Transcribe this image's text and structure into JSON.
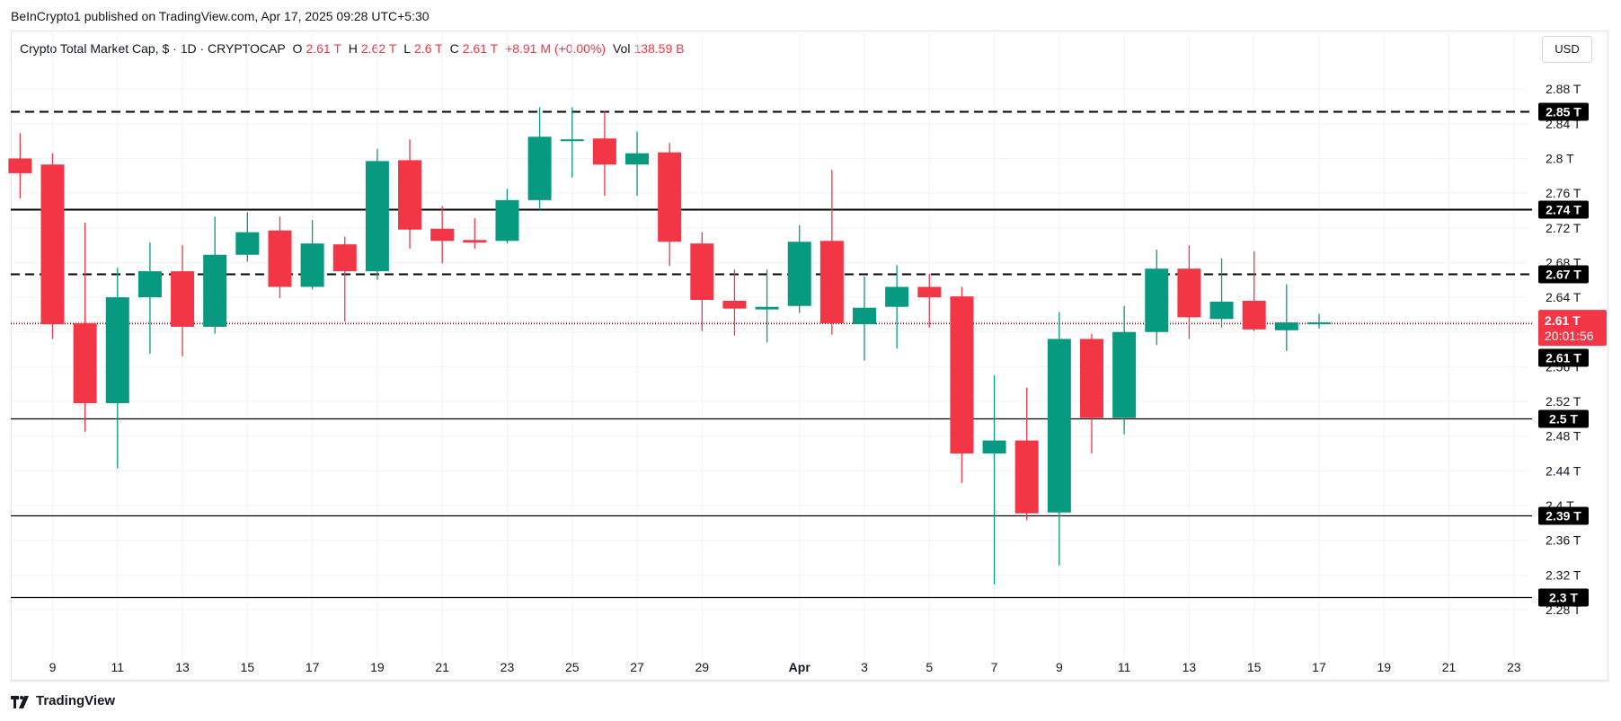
{
  "published": "BeInCrypto1 published on TradingView.com, Apr 17, 2025 09:28 UTC+5:30",
  "legend": {
    "symbol": "Crypto Total Market Cap, $ · 1D · CRYPTOCAP",
    "o_label": "O",
    "o_value": "2.61 T",
    "h_label": "H",
    "h_value": "2.62 T",
    "l_label": "L",
    "l_value": "2.6 T",
    "c_label": "C",
    "c_value": "2.61 T",
    "change": "+8.91 M (+0.00%)",
    "vol_label": "Vol",
    "vol_value": "138.59 B"
  },
  "currency_button": "USD",
  "footer_brand": "TradingView",
  "colors": {
    "up": "#089981",
    "down": "#f23645",
    "grid": "#f0f3fa",
    "text": "#131722",
    "level": "#000000"
  },
  "chart_data": {
    "type": "candlestick",
    "title": "Crypto Total Market Cap, $ · 1D · CRYPTOCAP",
    "xlabel": "",
    "ylabel": "",
    "ylim": [
      2.265,
      2.905
    ],
    "y_ticks": [
      "2.88 T",
      "2.84 T",
      "2.8 T",
      "2.76 T",
      "2.72 T",
      "2.68 T",
      "2.64 T",
      "2.6 T",
      "2.56 T",
      "2.52 T",
      "2.48 T",
      "2.44 T",
      "2.4 T",
      "2.36 T",
      "2.32 T",
      "2.28 T"
    ],
    "y_tick_values": [
      2.88,
      2.84,
      2.8,
      2.76,
      2.72,
      2.68,
      2.64,
      2.6,
      2.56,
      2.52,
      2.48,
      2.44,
      2.4,
      2.36,
      2.32,
      2.28
    ],
    "x_ticks": [
      {
        "label": "9",
        "d": 9
      },
      {
        "label": "11",
        "d": 11
      },
      {
        "label": "13",
        "d": 13
      },
      {
        "label": "15",
        "d": 15
      },
      {
        "label": "17",
        "d": 17
      },
      {
        "label": "19",
        "d": 19
      },
      {
        "label": "21",
        "d": 21
      },
      {
        "label": "23",
        "d": 23
      },
      {
        "label": "25",
        "d": 25
      },
      {
        "label": "27",
        "d": 27
      },
      {
        "label": "29",
        "d": 29
      },
      {
        "label": "Apr",
        "d": 32
      },
      {
        "label": "3",
        "d": 34
      },
      {
        "label": "5",
        "d": 36
      },
      {
        "label": "7",
        "d": 38
      },
      {
        "label": "9",
        "d": 40
      },
      {
        "label": "11",
        "d": 42
      },
      {
        "label": "13",
        "d": 44
      },
      {
        "label": "15",
        "d": 46
      },
      {
        "label": "17",
        "d": 48
      },
      {
        "label": "19",
        "d": 50
      },
      {
        "label": "21",
        "d": 52
      },
      {
        "label": "23",
        "d": 54
      }
    ],
    "candles": [
      {
        "d": 8,
        "o": 2.8,
        "h": 2.829,
        "l": 2.754,
        "c": 2.783
      },
      {
        "d": 9,
        "o": 2.793,
        "h": 2.806,
        "l": 2.592,
        "c": 2.609
      },
      {
        "d": 10,
        "o": 2.61,
        "h": 2.726,
        "l": 2.485,
        "c": 2.518
      },
      {
        "d": 11,
        "o": 2.518,
        "h": 2.674,
        "l": 2.443,
        "c": 2.64
      },
      {
        "d": 12,
        "o": 2.64,
        "h": 2.703,
        "l": 2.575,
        "c": 2.67
      },
      {
        "d": 13,
        "o": 2.67,
        "h": 2.7,
        "l": 2.572,
        "c": 2.606
      },
      {
        "d": 14,
        "o": 2.606,
        "h": 2.733,
        "l": 2.598,
        "c": 2.689
      },
      {
        "d": 15,
        "o": 2.689,
        "h": 2.738,
        "l": 2.681,
        "c": 2.715
      },
      {
        "d": 16,
        "o": 2.717,
        "h": 2.733,
        "l": 2.639,
        "c": 2.652
      },
      {
        "d": 17,
        "o": 2.652,
        "h": 2.729,
        "l": 2.649,
        "c": 2.702
      },
      {
        "d": 18,
        "o": 2.701,
        "h": 2.71,
        "l": 2.612,
        "c": 2.67
      },
      {
        "d": 19,
        "o": 2.67,
        "h": 2.811,
        "l": 2.66,
        "c": 2.797
      },
      {
        "d": 20,
        "o": 2.798,
        "h": 2.822,
        "l": 2.696,
        "c": 2.718
      },
      {
        "d": 21,
        "o": 2.719,
        "h": 2.745,
        "l": 2.679,
        "c": 2.705
      },
      {
        "d": 22,
        "o": 2.706,
        "h": 2.731,
        "l": 2.696,
        "c": 2.703
      },
      {
        "d": 23,
        "o": 2.705,
        "h": 2.765,
        "l": 2.702,
        "c": 2.752
      },
      {
        "d": 24,
        "o": 2.752,
        "h": 2.859,
        "l": 2.741,
        "c": 2.825
      },
      {
        "d": 25,
        "o": 2.822,
        "h": 2.859,
        "l": 2.778,
        "c": 2.822
      },
      {
        "d": 26,
        "o": 2.823,
        "h": 2.855,
        "l": 2.757,
        "c": 2.793
      },
      {
        "d": 27,
        "o": 2.793,
        "h": 2.831,
        "l": 2.757,
        "c": 2.806
      },
      {
        "d": 28,
        "o": 2.807,
        "h": 2.818,
        "l": 2.676,
        "c": 2.704
      },
      {
        "d": 29,
        "o": 2.702,
        "h": 2.715,
        "l": 2.601,
        "c": 2.637
      },
      {
        "d": 30,
        "o": 2.636,
        "h": 2.672,
        "l": 2.596,
        "c": 2.627
      },
      {
        "d": 31,
        "o": 2.626,
        "h": 2.672,
        "l": 2.588,
        "c": 2.629
      },
      {
        "d": 32,
        "o": 2.63,
        "h": 2.723,
        "l": 2.622,
        "c": 2.704
      },
      {
        "d": 33,
        "o": 2.705,
        "h": 2.787,
        "l": 2.597,
        "c": 2.61
      },
      {
        "d": 34,
        "o": 2.609,
        "h": 2.664,
        "l": 2.567,
        "c": 2.628
      },
      {
        "d": 35,
        "o": 2.629,
        "h": 2.677,
        "l": 2.581,
        "c": 2.652
      },
      {
        "d": 36,
        "o": 2.652,
        "h": 2.667,
        "l": 2.605,
        "c": 2.64
      },
      {
        "d": 37,
        "o": 2.641,
        "h": 2.652,
        "l": 2.426,
        "c": 2.46
      },
      {
        "d": 38,
        "o": 2.46,
        "h": 2.55,
        "l": 2.309,
        "c": 2.475
      },
      {
        "d": 39,
        "o": 2.475,
        "h": 2.536,
        "l": 2.383,
        "c": 2.391
      },
      {
        "d": 40,
        "o": 2.392,
        "h": 2.623,
        "l": 2.331,
        "c": 2.592
      },
      {
        "d": 41,
        "o": 2.592,
        "h": 2.598,
        "l": 2.46,
        "c": 2.501
      },
      {
        "d": 42,
        "o": 2.501,
        "h": 2.63,
        "l": 2.482,
        "c": 2.6
      },
      {
        "d": 43,
        "o": 2.6,
        "h": 2.695,
        "l": 2.585,
        "c": 2.673
      },
      {
        "d": 44,
        "o": 2.673,
        "h": 2.7,
        "l": 2.592,
        "c": 2.617
      },
      {
        "d": 45,
        "o": 2.615,
        "h": 2.685,
        "l": 2.605,
        "c": 2.635
      },
      {
        "d": 46,
        "o": 2.636,
        "h": 2.693,
        "l": 2.601,
        "c": 2.603
      },
      {
        "d": 47,
        "o": 2.602,
        "h": 2.655,
        "l": 2.578,
        "c": 2.611
      },
      {
        "d": 48,
        "o": 2.61,
        "h": 2.621,
        "l": 2.604,
        "c": 2.611
      }
    ],
    "levels": [
      {
        "value": 2.854,
        "label": "2.85 T",
        "style": "dashed"
      },
      {
        "value": 2.742,
        "label": "2.74 T",
        "style": "solid"
      },
      {
        "value": 2.667,
        "label": "2.67 T",
        "style": "dashed"
      },
      {
        "value": 2.571,
        "label": "2.61 T",
        "style": "none"
      },
      {
        "value": 2.5,
        "label": "2.5 T",
        "style": "solid-thin"
      },
      {
        "value": 2.389,
        "label": "2.39 T",
        "style": "solid-thin"
      },
      {
        "value": 2.295,
        "label": "2.3 T",
        "style": "solid-thin"
      }
    ],
    "current_price": {
      "value": 2.611,
      "label": "2.61 T",
      "countdown": "20:01:56"
    },
    "grid": true
  }
}
